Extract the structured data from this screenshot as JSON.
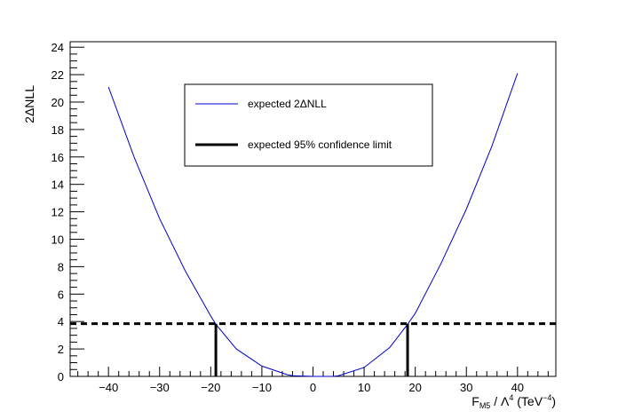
{
  "chart_data": {
    "type": "line",
    "title": "",
    "xlabel_parts": {
      "main": "F",
      "sub": "M5",
      "mid": " / Λ",
      "sup1": "4",
      "unit": " (TeV",
      "sup2": "−4",
      "close": ")"
    },
    "ylabel": "2ΔNLL",
    "xlim": [
      -47.5,
      47.5
    ],
    "ylim": [
      0,
      24.4
    ],
    "xticks": [
      -40,
      -30,
      -20,
      -10,
      0,
      10,
      20,
      30,
      40
    ],
    "yticks": [
      0,
      2,
      4,
      6,
      8,
      10,
      12,
      14,
      16,
      18,
      20,
      22,
      24
    ],
    "grid": false,
    "legend_position": "top-center",
    "series": [
      {
        "name": "expected 2ΔNLL",
        "color": "#0000cc",
        "x": [
          -40,
          -35,
          -30,
          -25,
          -20,
          -19,
          -15,
          -10,
          -5,
          -4,
          0,
          2,
          4,
          5,
          10,
          15,
          18.5,
          20,
          25,
          30,
          35,
          40
        ],
        "y": [
          21.1,
          16.0,
          11.5,
          7.7,
          4.4,
          3.8,
          2.0,
          0.75,
          0.12,
          0.05,
          0.0,
          0.0,
          0.0,
          0.05,
          0.65,
          2.1,
          3.8,
          4.6,
          8.2,
          12.2,
          16.8,
          22.1
        ]
      },
      {
        "name": "expected 95% confidence limit",
        "color": "#000000",
        "limits_x": [
          -19,
          18.5
        ],
        "threshold_y": 3.84
      }
    ]
  }
}
